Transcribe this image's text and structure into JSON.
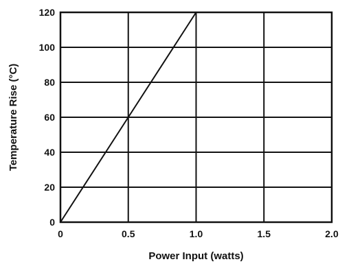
{
  "chart_data": {
    "type": "line",
    "title": "",
    "xlabel": "Power Input (watts)",
    "ylabel": "Temperature Rise (°C)",
    "xlim": [
      0,
      2.0
    ],
    "ylim": [
      0,
      120
    ],
    "x_ticks": [
      "0",
      "0.5",
      "1.0",
      "1.5",
      "2.0"
    ],
    "y_ticks": [
      "0",
      "20",
      "40",
      "60",
      "80",
      "100",
      "120"
    ],
    "grid": true,
    "series": [
      {
        "x": [
          0,
          0.5,
          1.0
        ],
        "y": [
          0,
          60,
          120
        ]
      }
    ],
    "colors": {
      "line": "#111111",
      "grid": "#111111",
      "background": "#ffffff"
    }
  }
}
